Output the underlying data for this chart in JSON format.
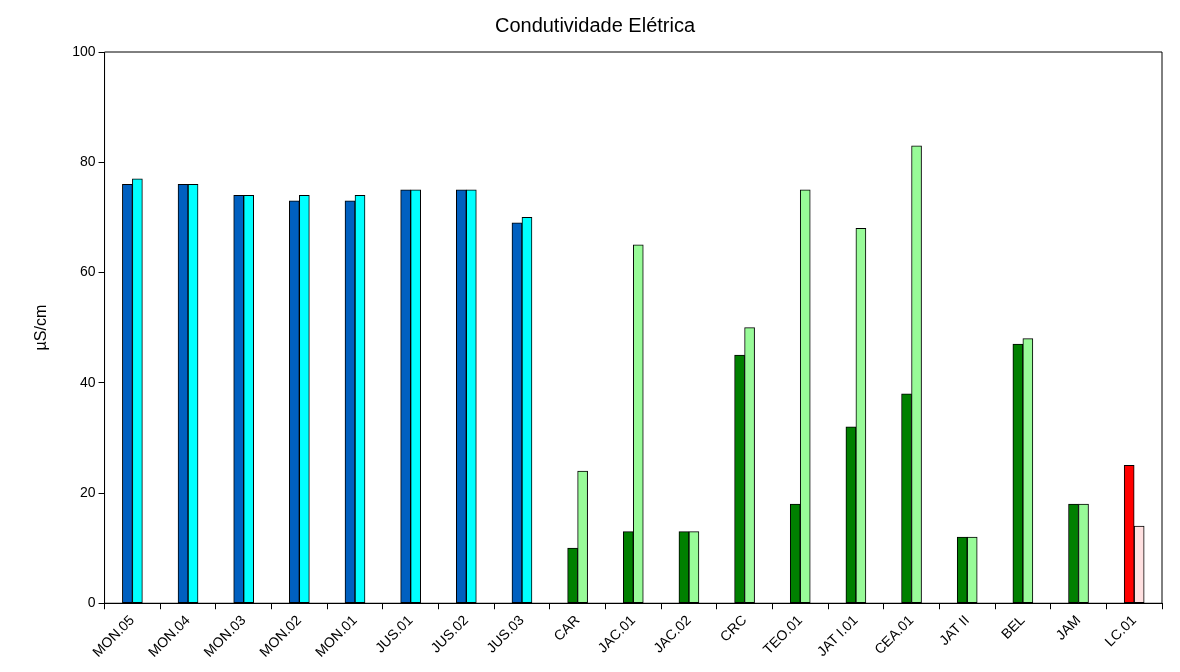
{
  "chart_data": {
    "type": "bar",
    "title": "Condutividade Elétrica",
    "ylabel": "µS/cm",
    "categories": [
      "MON.05",
      "MON.04",
      "MON.03",
      "MON.02",
      "MON.01",
      "JUS.01",
      "JUS.02",
      "JUS.03",
      "CAR",
      "JAC.01",
      "JAC.02",
      "CRC",
      "TEO.01",
      "JAT I.01",
      "CEA.01",
      "JAT II",
      "BEL",
      "JAM",
      "LC.01"
    ],
    "series": [
      {
        "colors": [
          "#0060c0",
          "#0060c0",
          "#0060c0",
          "#0060c0",
          "#0060c0",
          "#0060c0",
          "#0060c0",
          "#0060c0",
          "#008000",
          "#008000",
          "#008000",
          "#008000",
          "#008000",
          "#008000",
          "#008000",
          "#008000",
          "#008000",
          "#008000",
          "#ff0000"
        ],
        "values": [
          76,
          76,
          74,
          73,
          73,
          75,
          75,
          69,
          10,
          13,
          13,
          45,
          18,
          32,
          38,
          12,
          47,
          18,
          25
        ]
      },
      {
        "colors": [
          "#00ffff",
          "#00ffff",
          "#00ffff",
          "#00ffff",
          "#00ffff",
          "#00ffff",
          "#00ffff",
          "#00ffff",
          "#98fb98",
          "#98fb98",
          "#98fb98",
          "#98fb98",
          "#98fb98",
          "#98fb98",
          "#98fb98",
          "#98fb98",
          "#98fb98",
          "#98fb98",
          "#ffe0e0"
        ],
        "values": [
          77,
          76,
          74,
          74,
          74,
          75,
          75,
          70,
          24,
          65,
          13,
          50,
          75,
          68,
          83,
          12,
          48,
          18,
          14
        ]
      }
    ],
    "ylim": [
      0,
      100
    ],
    "yticks": [
      0,
      20,
      40,
      60,
      80,
      100
    ],
    "grid": false,
    "legend": false
  }
}
